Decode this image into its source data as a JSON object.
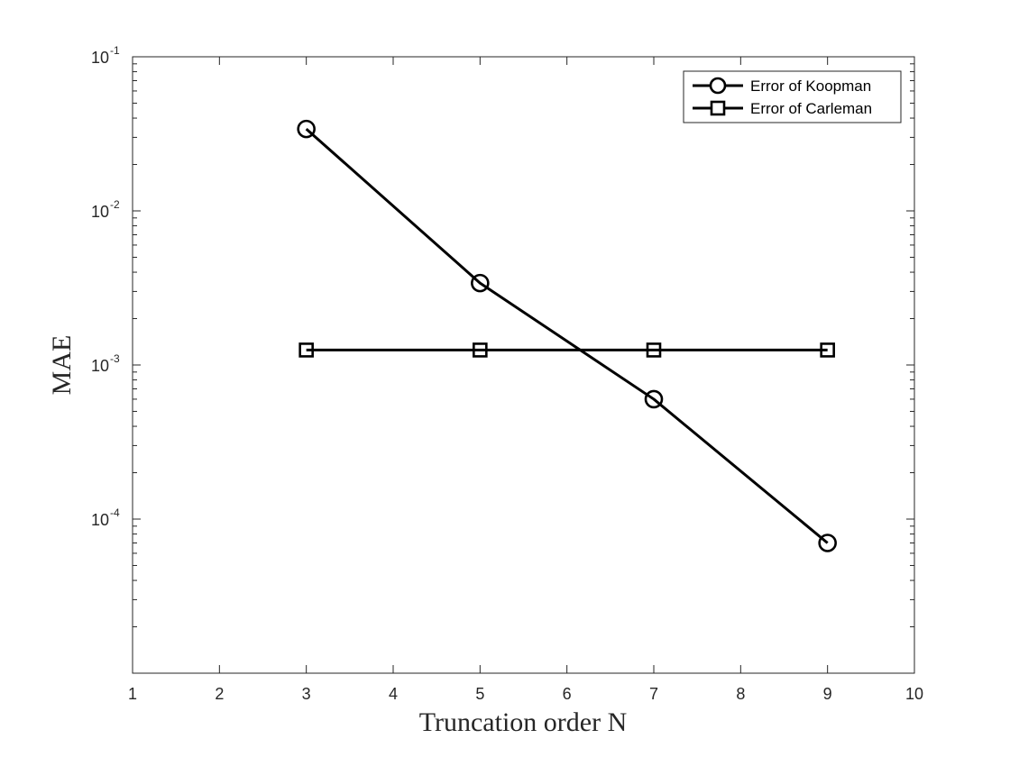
{
  "chart_data": {
    "type": "line",
    "xlabel": "Truncation order N",
    "ylabel": "MAE",
    "xlim": [
      1,
      10
    ],
    "xticks": [
      1,
      2,
      3,
      4,
      5,
      6,
      7,
      8,
      9,
      10
    ],
    "ylim": [
      1e-05,
      0.1
    ],
    "yscale": "log",
    "yticks": [
      {
        "value": 0.1,
        "base": "10",
        "exp": "-1"
      },
      {
        "value": 0.01,
        "base": "10",
        "exp": "-2"
      },
      {
        "value": 0.001,
        "base": "10",
        "exp": "-3"
      },
      {
        "value": 0.0001,
        "base": "10",
        "exp": "-4"
      }
    ],
    "grid": false,
    "legend_position": "top-right",
    "series": [
      {
        "name": "Error of Koopman",
        "marker": "circle",
        "color": "#000000",
        "x": [
          3,
          5,
          7,
          9
        ],
        "y": [
          0.034,
          0.0034,
          0.0006,
          7e-05
        ]
      },
      {
        "name": "Error of Carleman",
        "marker": "square",
        "color": "#000000",
        "x": [
          3,
          5,
          7,
          9
        ],
        "y": [
          0.00125,
          0.00125,
          0.00125,
          0.00125
        ]
      }
    ]
  }
}
